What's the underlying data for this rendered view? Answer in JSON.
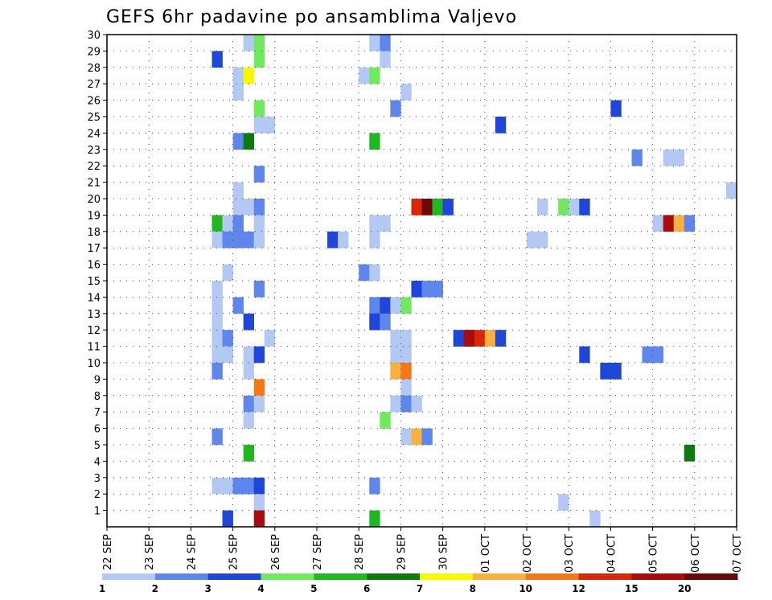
{
  "chart_data": {
    "type": "heatmap",
    "title": "GEFS 6hr padavine po ansamblima Valjevo",
    "xlabel": "",
    "ylabel": "",
    "x_unit": "6-hour step from 22 SEP 00Z",
    "xlim": [
      0,
      60
    ],
    "ylim": [
      0,
      30
    ],
    "y_ticks": [
      "1",
      "2",
      "3",
      "4",
      "5",
      "6",
      "7",
      "8",
      "9",
      "10",
      "11",
      "12",
      "13",
      "14",
      "15",
      "16",
      "17",
      "18",
      "19",
      "20",
      "21",
      "22",
      "23",
      "24",
      "25",
      "26",
      "27",
      "28",
      "29",
      "30"
    ],
    "x_ticks": [
      {
        "label": "22 SEP",
        "x": 0
      },
      {
        "label": "23 SEP",
        "x": 4
      },
      {
        "label": "24 SEP",
        "x": 8
      },
      {
        "label": "25 SEP",
        "x": 12
      },
      {
        "label": "26 SEP",
        "x": 16
      },
      {
        "label": "27 SEP",
        "x": 20
      },
      {
        "label": "28 SEP",
        "x": 24
      },
      {
        "label": "29 SEP",
        "x": 28
      },
      {
        "label": "30 SEP",
        "x": 32
      },
      {
        "label": "01 OCT",
        "x": 36
      },
      {
        "label": "02 OCT",
        "x": 40
      },
      {
        "label": "03 OCT",
        "x": 44
      },
      {
        "label": "04 OCT",
        "x": 48
      },
      {
        "label": "05 OCT",
        "x": 52
      },
      {
        "label": "06 OCT",
        "x": 56
      },
      {
        "label": "07 OCT",
        "x": 60
      }
    ],
    "grid": true,
    "grid_style": "dotted",
    "legend": {
      "placement": "bottom",
      "labels": [
        "1",
        "2",
        "3",
        "4",
        "5",
        "6",
        "7",
        "8",
        "10",
        "12",
        "15",
        "20"
      ],
      "colors": [
        "#b4c8f4",
        "#5e86ec",
        "#1e46d8",
        "#70e860",
        "#20b820",
        "#0c7a0c",
        "#f8f800",
        "#f8b040",
        "#f47818",
        "#d82808",
        "#a80c0c",
        "#6c0808"
      ]
    },
    "colormap": {
      "1": "#b4c8f4",
      "2": "#5e86ec",
      "3": "#1e46d8",
      "4": "#70e860",
      "5": "#20b820",
      "6": "#0c7a0c",
      "7": "#f8f800",
      "8": "#f8b040",
      "9": "#f47818",
      "10": "#d82808",
      "11": "#a80c0c",
      "12": "#6c0808"
    },
    "cells": [
      [
        30,
        13.5,
        1
      ],
      [
        30,
        14.5,
        4
      ],
      [
        30,
        25.5,
        1
      ],
      [
        30,
        26.5,
        2
      ],
      [
        29,
        10.5,
        3
      ],
      [
        29,
        14.5,
        4
      ],
      [
        29,
        26.5,
        1
      ],
      [
        28,
        12.5,
        1
      ],
      [
        28,
        13.5,
        7
      ],
      [
        28,
        24.5,
        1
      ],
      [
        28,
        25.5,
        4
      ],
      [
        27,
        12.5,
        1
      ],
      [
        27,
        28.5,
        1
      ],
      [
        26,
        14.5,
        4
      ],
      [
        26,
        27.5,
        2
      ],
      [
        26,
        48.5,
        3
      ],
      [
        25,
        14.5,
        1
      ],
      [
        25,
        15.5,
        1
      ],
      [
        25,
        37.5,
        3
      ],
      [
        24,
        12.5,
        2
      ],
      [
        24,
        13.5,
        6
      ],
      [
        24,
        25.5,
        5
      ],
      [
        23,
        50.5,
        2
      ],
      [
        23,
        53.5,
        1
      ],
      [
        23,
        54.5,
        1
      ],
      [
        22,
        14.5,
        2
      ],
      [
        21,
        12.5,
        1
      ],
      [
        21,
        59.5,
        1
      ],
      [
        20,
        12.5,
        1
      ],
      [
        20,
        13.5,
        1
      ],
      [
        20,
        14.5,
        2
      ],
      [
        20,
        29.5,
        10
      ],
      [
        20,
        30.5,
        12
      ],
      [
        20,
        31.5,
        5
      ],
      [
        20,
        32.5,
        3
      ],
      [
        20,
        41.5,
        1
      ],
      [
        20,
        43.5,
        4
      ],
      [
        20,
        44.5,
        1
      ],
      [
        20,
        45.5,
        3
      ],
      [
        19,
        10.5,
        5
      ],
      [
        19,
        11.5,
        1
      ],
      [
        19,
        12.5,
        2
      ],
      [
        19,
        14.5,
        1
      ],
      [
        19,
        25.5,
        1
      ],
      [
        19,
        26.5,
        1
      ],
      [
        19,
        52.5,
        1
      ],
      [
        19,
        53.5,
        11
      ],
      [
        19,
        54.5,
        8
      ],
      [
        19,
        55.5,
        2
      ],
      [
        18,
        10.5,
        1
      ],
      [
        18,
        11.5,
        2
      ],
      [
        18,
        12.5,
        2
      ],
      [
        18,
        13.5,
        2
      ],
      [
        18,
        14.5,
        1
      ],
      [
        18,
        21.5,
        3
      ],
      [
        18,
        22.5,
        1
      ],
      [
        18,
        25.5,
        1
      ],
      [
        18,
        40.5,
        1
      ],
      [
        18,
        41.5,
        1
      ],
      [
        16,
        11.5,
        1
      ],
      [
        16,
        24.5,
        2
      ],
      [
        16,
        25.5,
        1
      ],
      [
        15,
        10.5,
        1
      ],
      [
        15,
        14.5,
        2
      ],
      [
        15,
        29.5,
        3
      ],
      [
        15,
        30.5,
        2
      ],
      [
        15,
        31.5,
        2
      ],
      [
        14,
        10.5,
        1
      ],
      [
        14,
        12.5,
        2
      ],
      [
        14,
        25.5,
        2
      ],
      [
        14,
        26.5,
        3
      ],
      [
        14,
        27.5,
        1
      ],
      [
        14,
        28.5,
        4
      ],
      [
        13,
        10.5,
        1
      ],
      [
        13,
        13.5,
        3
      ],
      [
        13,
        25.5,
        3
      ],
      [
        13,
        26.5,
        2
      ],
      [
        12,
        10.5,
        1
      ],
      [
        12,
        11.5,
        2
      ],
      [
        12,
        15.5,
        1
      ],
      [
        12,
        27.5,
        1
      ],
      [
        12,
        28.5,
        1
      ],
      [
        12,
        33.5,
        3
      ],
      [
        12,
        34.5,
        11
      ],
      [
        12,
        35.5,
        10
      ],
      [
        12,
        36.5,
        8
      ],
      [
        12,
        37.5,
        3
      ],
      [
        12,
        34.5,
        11
      ],
      [
        11,
        10.5,
        1
      ],
      [
        11,
        11.5,
        1
      ],
      [
        11,
        13.5,
        1
      ],
      [
        11,
        14.5,
        3
      ],
      [
        11,
        27.5,
        1
      ],
      [
        11,
        28.5,
        1
      ],
      [
        11,
        45.5,
        3
      ],
      [
        11,
        51.5,
        2
      ],
      [
        11,
        52.5,
        2
      ],
      [
        10,
        10.5,
        2
      ],
      [
        10,
        13.5,
        1
      ],
      [
        10,
        27.5,
        8
      ],
      [
        10,
        28.5,
        9
      ],
      [
        10,
        47.5,
        3
      ],
      [
        10,
        48.5,
        3
      ],
      [
        9,
        14.5,
        9
      ],
      [
        9,
        28.5,
        1
      ],
      [
        8,
        13.5,
        2
      ],
      [
        8,
        14.5,
        1
      ],
      [
        8,
        27.5,
        1
      ],
      [
        8,
        28.5,
        2
      ],
      [
        8,
        29.5,
        1
      ],
      [
        7,
        13.5,
        1
      ],
      [
        7,
        26.5,
        4
      ],
      [
        6,
        10.5,
        2
      ],
      [
        6,
        28.5,
        1
      ],
      [
        6,
        29.5,
        8
      ],
      [
        6,
        30.5,
        2
      ],
      [
        5,
        13.5,
        5
      ],
      [
        5,
        55.5,
        6
      ],
      [
        3,
        10.5,
        1
      ],
      [
        3,
        11.5,
        1
      ],
      [
        3,
        12.5,
        2
      ],
      [
        3,
        13.5,
        2
      ],
      [
        3,
        14.5,
        3
      ],
      [
        3,
        25.5,
        2
      ],
      [
        2,
        14.5,
        1
      ],
      [
        2,
        43.5,
        1
      ],
      [
        1,
        11.5,
        3
      ],
      [
        1,
        14.5,
        11
      ],
      [
        1,
        25.5,
        5
      ],
      [
        1,
        46.5,
        1
      ]
    ]
  }
}
